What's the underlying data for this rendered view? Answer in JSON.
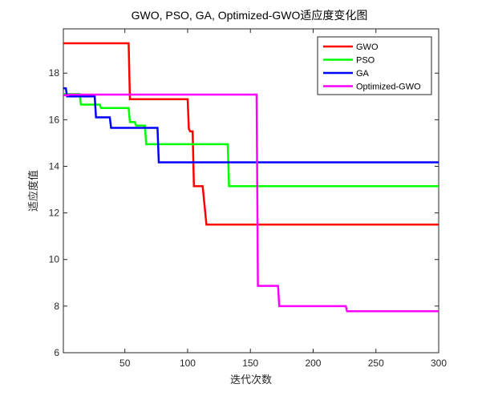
{
  "chart_data": {
    "type": "line",
    "title": "GWO, PSO, GA, Optimized-GWO适应度变化图",
    "xlabel": "迭代次数",
    "ylabel": "适应度值",
    "xlim": [
      1,
      300
    ],
    "ylim": [
      6,
      19.9
    ],
    "xticks": [
      50,
      100,
      150,
      200,
      250,
      300
    ],
    "yticks": [
      6,
      8,
      10,
      12,
      14,
      16,
      18
    ],
    "legend_position": "top-right",
    "grid": false,
    "series": [
      {
        "name": "GWO",
        "color": "#ff0000",
        "steps": [
          [
            1,
            19.28
          ],
          [
            53,
            19.28
          ],
          [
            54,
            16.88
          ],
          [
            100,
            16.88
          ],
          [
            101,
            15.6
          ],
          [
            102,
            15.5
          ],
          [
            104,
            15.5
          ],
          [
            105,
            13.15
          ],
          [
            112,
            13.15
          ],
          [
            115,
            11.5
          ],
          [
            300,
            11.5
          ]
        ]
      },
      {
        "name": "PSO",
        "color": "#00ff00",
        "steps": [
          [
            1,
            17.1
          ],
          [
            14,
            17.1
          ],
          [
            15,
            16.65
          ],
          [
            30,
            16.65
          ],
          [
            31,
            16.5
          ],
          [
            53,
            16.5
          ],
          [
            54,
            15.9
          ],
          [
            58,
            15.9
          ],
          [
            59,
            15.75
          ],
          [
            66,
            15.75
          ],
          [
            67,
            14.95
          ],
          [
            132,
            14.95
          ],
          [
            133,
            13.15
          ],
          [
            300,
            13.15
          ]
        ]
      },
      {
        "name": "GA",
        "color": "#0000ff",
        "steps": [
          [
            1,
            17.35
          ],
          [
            3,
            17.35
          ],
          [
            4,
            17.0
          ],
          [
            26,
            17.0
          ],
          [
            27,
            16.1
          ],
          [
            38,
            16.1
          ],
          [
            39,
            15.65
          ],
          [
            76,
            15.65
          ],
          [
            77,
            14.17
          ],
          [
            300,
            14.17
          ]
        ]
      },
      {
        "name": "Optimized-GWO",
        "color": "#ff00ff",
        "steps": [
          [
            1,
            17.05
          ],
          [
            5,
            17.05
          ],
          [
            6,
            17.08
          ],
          [
            155,
            17.08
          ],
          [
            156,
            8.87
          ],
          [
            172,
            8.87
          ],
          [
            173,
            8.0
          ],
          [
            226,
            8.0
          ],
          [
            227,
            7.78
          ],
          [
            300,
            7.78
          ]
        ]
      }
    ]
  }
}
